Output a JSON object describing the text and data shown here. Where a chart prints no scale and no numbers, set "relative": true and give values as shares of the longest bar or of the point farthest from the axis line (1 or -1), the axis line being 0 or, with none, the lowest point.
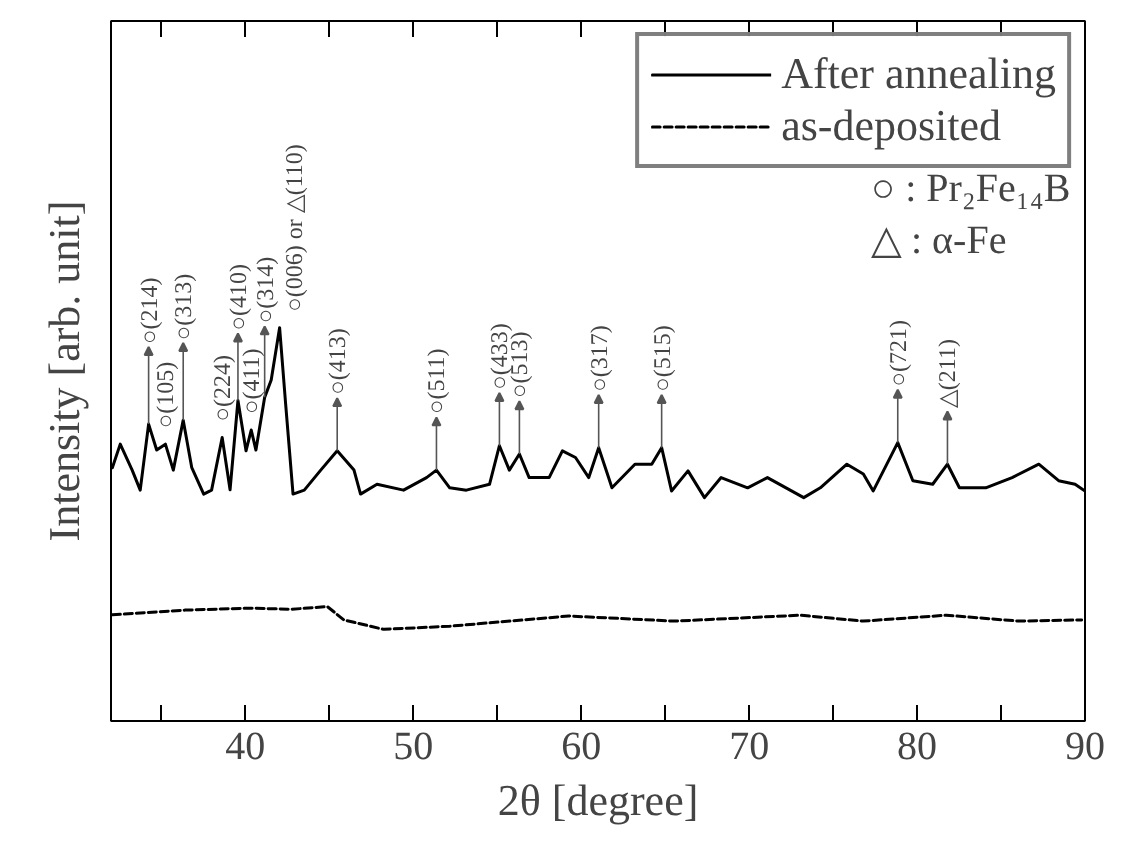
{
  "chart_data": {
    "type": "line",
    "relative": true,
    "xlabel": "2θ [degree]",
    "ylabel": "Intensity [arb. unit]",
    "xlim": [
      32,
      90
    ],
    "xticks": [
      {
        "value": 35,
        "label": null
      },
      40,
      {
        "value": 45,
        "label": null
      },
      50,
      {
        "value": 55,
        "label": null
      },
      60,
      {
        "value": 65,
        "label": null
      },
      70,
      {
        "value": 75,
        "label": null
      },
      80,
      {
        "value": 85,
        "label": null
      },
      90
    ],
    "legend": "top right",
    "grid": false,
    "series": [
      {
        "name": "After annealing",
        "color": "#000000",
        "line_style": "solid",
        "x": [
          32.08,
          32.55,
          33.26,
          33.74,
          34.24,
          34.72,
          35.24,
          35.71,
          36.3,
          36.81,
          37.52,
          37.99,
          38.62,
          39.09,
          39.56,
          40.04,
          40.35,
          40.63,
          41.15,
          41.54,
          42.04,
          42.4,
          42.84,
          43.51,
          44.49,
          45.47,
          46.47,
          46.86,
          47.84,
          49.42,
          50.79,
          51.38,
          52.17,
          53.16,
          54.54,
          55.13,
          55.72,
          56.32,
          56.9,
          58.09,
          58.88,
          59.66,
          60.45,
          61.04,
          61.63,
          61.83,
          63.2,
          64.2,
          64.79,
          65.38,
          66.36,
          67.34,
          68.33,
          69.91,
          71.09,
          73.25,
          74.24,
          75.82,
          76.8,
          77.39,
          78.85,
          79.75,
          80.93,
          81.81,
          82.52,
          84.09,
          85.66,
          87.25,
          88.43,
          89.41,
          90.0
        ],
        "values": [
          0.644,
          0.704,
          0.638,
          0.587,
          0.755,
          0.689,
          0.704,
          0.638,
          0.765,
          0.644,
          0.577,
          0.587,
          0.721,
          0.588,
          0.815,
          0.687,
          0.74,
          0.689,
          0.823,
          0.867,
          1,
          0.806,
          0.577,
          0.587,
          0.638,
          0.687,
          0.638,
          0.577,
          0.602,
          0.587,
          0.619,
          0.638,
          0.593,
          0.587,
          0.602,
          0.7,
          0.638,
          0.679,
          0.619,
          0.619,
          0.687,
          0.67,
          0.619,
          0.695,
          0.619,
          0.593,
          0.653,
          0.653,
          0.695,
          0.585,
          0.636,
          0.568,
          0.619,
          0.593,
          0.619,
          0.568,
          0.593,
          0.653,
          0.628,
          0.585,
          0.708,
          0.611,
          0.602,
          0.653,
          0.593,
          0.593,
          0.619,
          0.653,
          0.611,
          0.602,
          0.585
        ]
      },
      {
        "name": "as-deposited",
        "color": "#000000",
        "line_style": "dashed",
        "x": [
          32.08,
          36.42,
          40.35,
          42.72,
          44.88,
          45.87,
          48.24,
          52.17,
          59.26,
          65.53,
          73.06,
          76.79,
          81.73,
          86.07,
          89.8
        ],
        "values": [
          0.27,
          0.282,
          0.287,
          0.284,
          0.291,
          0.257,
          0.233,
          0.241,
          0.267,
          0.254,
          0.269,
          0.254,
          0.269,
          0.254,
          0.257
        ]
      }
    ],
    "annotations": [
      "○ : Pr₂Fe₁₄B",
      "△ : α-Fe",
      {
        "text": "○(214)",
        "x": 34.24,
        "y": 0.755
      },
      {
        "text": "○(105)",
        "x": 35.24,
        "y": 0.704
      },
      {
        "text": "○(313)",
        "x": 36.3,
        "y": 0.765
      },
      {
        "text": "○(224)",
        "x": 38.62,
        "y": 0.721
      },
      {
        "text": "○(410)",
        "x": 39.56,
        "y": 0.815
      },
      {
        "text": "○(411)",
        "x": 40.35,
        "y": 0.74
      },
      {
        "text": "○(314)",
        "x": 41.15,
        "y": 0.823
      },
      {
        "text": "○(006) or △(110)",
        "x": 42.04,
        "y": 1
      },
      {
        "text": "○(413)",
        "x": 45.47,
        "y": 0.687
      },
      {
        "text": "○(511)",
        "x": 51.38,
        "y": 0.638
      },
      {
        "text": "○(433)",
        "x": 55.13,
        "y": 0.7
      },
      {
        "text": "○(513)",
        "x": 56.32,
        "y": 0.679
      },
      {
        "text": "○(317)",
        "x": 61.04,
        "y": 0.695
      },
      {
        "text": "○(515)",
        "x": 64.79,
        "y": 0.695
      },
      {
        "text": "○(721)",
        "x": 78.85,
        "y": 0.708
      },
      {
        "text": "△(211)",
        "x": 81.81,
        "y": 0.653
      }
    ]
  }
}
